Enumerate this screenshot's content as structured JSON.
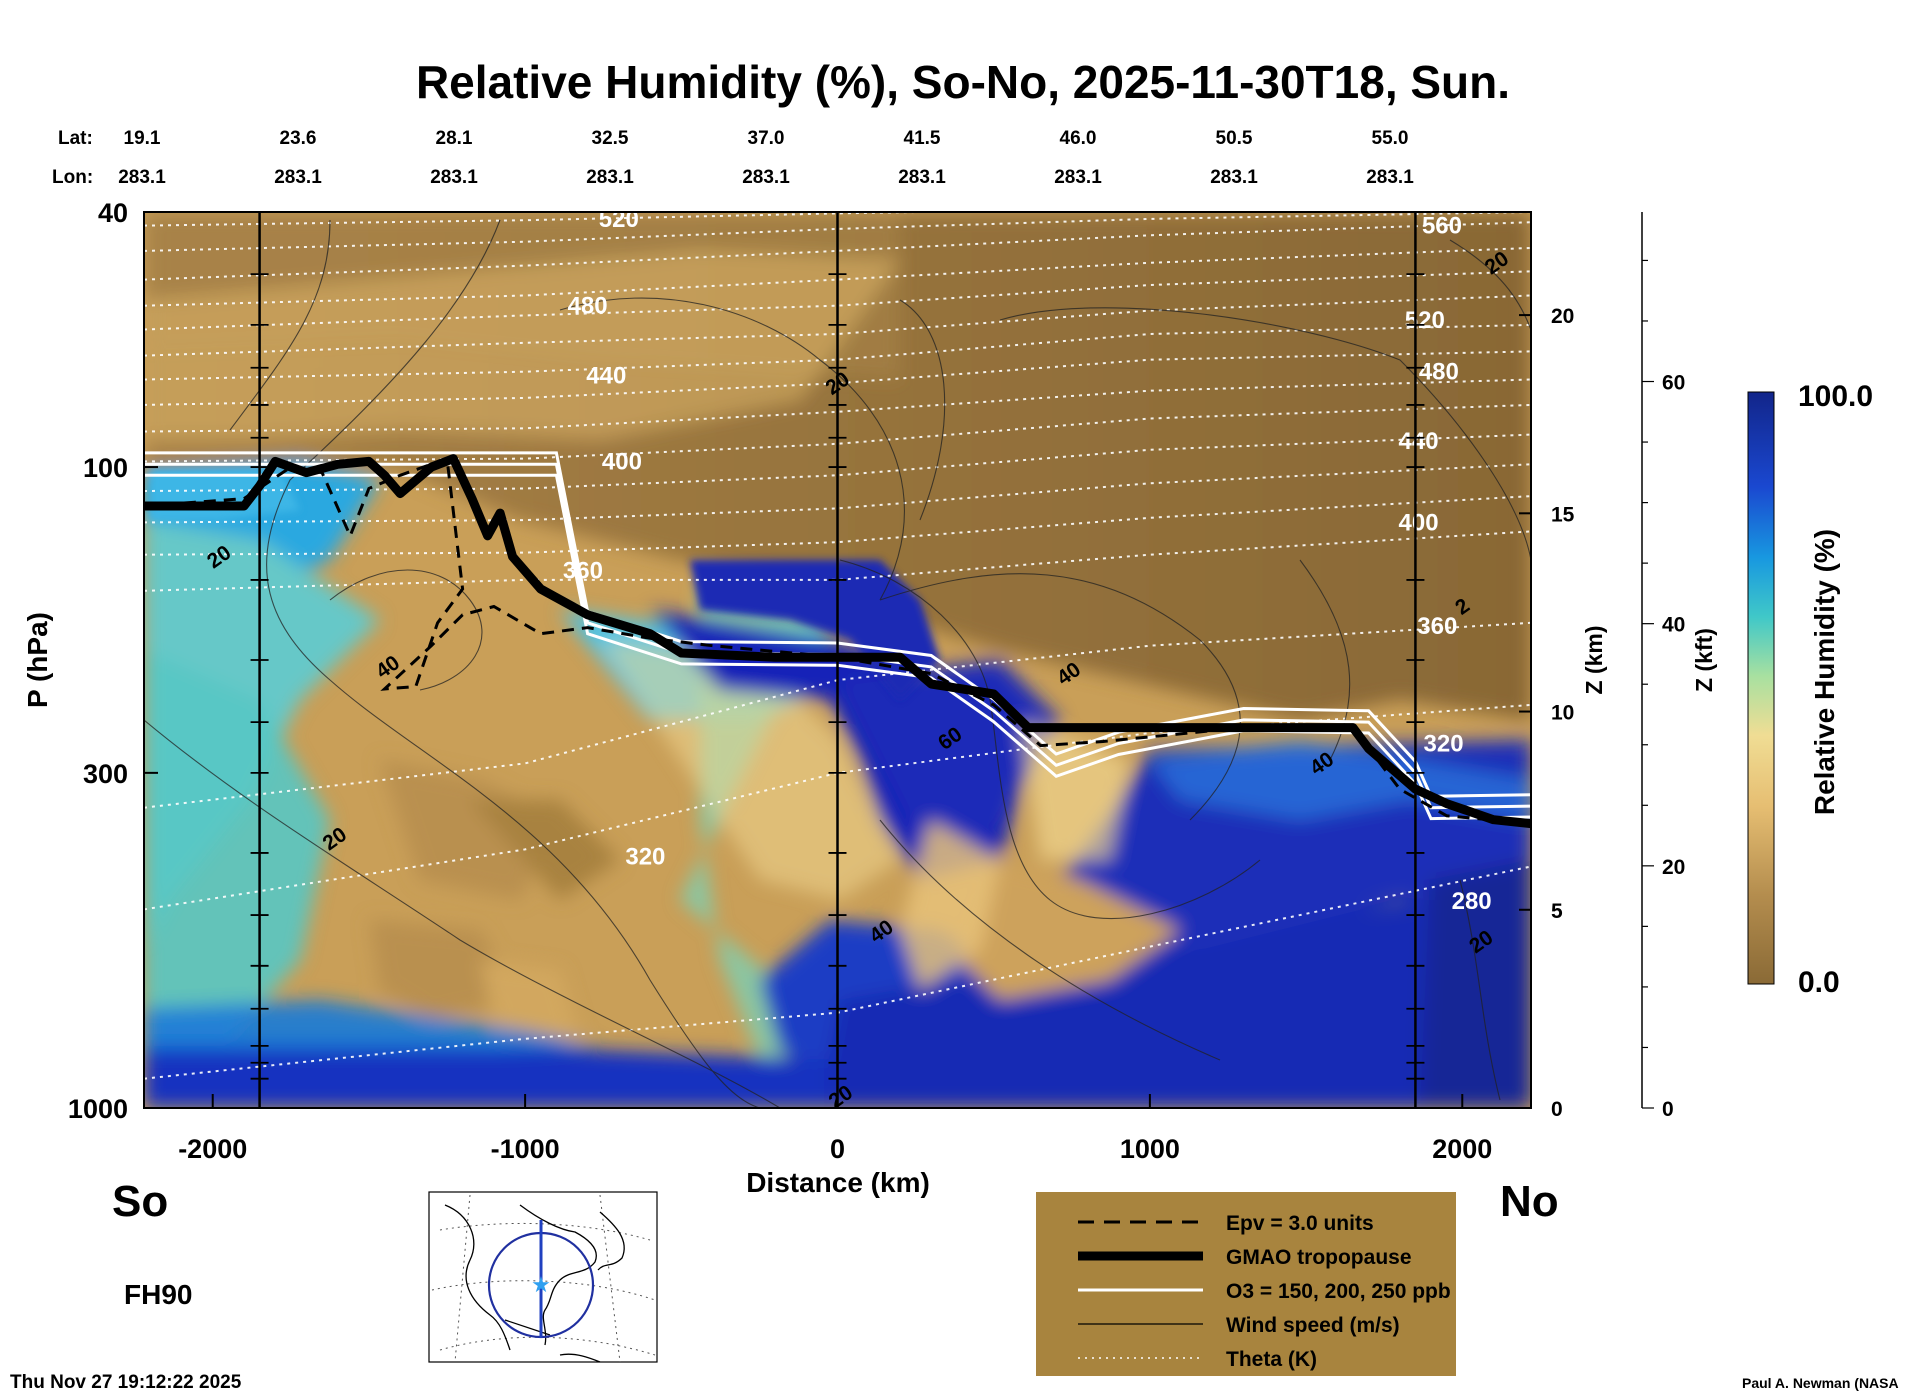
{
  "title": "Relative Humidity (%), So-No, 2025-11-30T18, Sun.",
  "header": {
    "lat_label": "Lat:",
    "lon_label": "Lon:",
    "lats": [
      "19.1",
      "23.6",
      "28.1",
      "32.5",
      "37.0",
      "41.5",
      "46.0",
      "50.5",
      "55.0"
    ],
    "lons": [
      "283.1",
      "283.1",
      "283.1",
      "283.1",
      "283.1",
      "283.1",
      "283.1",
      "283.1",
      "283.1"
    ]
  },
  "chart_data": {
    "type": "heatmap",
    "title": "Relative Humidity (%), So-No, 2025-11-30T18, Sun.",
    "xlabel": "Distance (km)",
    "ylabel": "P (hPa)",
    "ylabel_right": "Z (km)",
    "ylabel_right2": "Z (kft)",
    "x_range": [
      -2220,
      2220
    ],
    "y_range": [
      1000,
      40
    ],
    "y_scale": "log",
    "x_ticks": [
      "-2000",
      "-1000",
      "0",
      "1000",
      "2000"
    ],
    "x_tick_values": [
      -2000,
      -1000,
      0,
      1000,
      2000
    ],
    "y_ticks": [
      "40",
      "100",
      "300",
      "1000"
    ],
    "y_tick_values": [
      40,
      100,
      300,
      1000
    ],
    "z_km_ticks": [
      "0",
      "5",
      "10",
      "15",
      "20"
    ],
    "z_km_values": [
      0,
      5,
      10,
      15,
      20
    ],
    "z_kft_ticks": [
      "0",
      "20",
      "40",
      "60"
    ],
    "z_kft_values": [
      0,
      20,
      40,
      60
    ],
    "vertical_lines_km": [
      -1850,
      0,
      1850
    ],
    "colorbar": {
      "label": "Relative Humidity (%)",
      "min_label": "0.0",
      "max_label": "100.0",
      "min": 0,
      "max": 100
    },
    "theta_labels": [
      {
        "text": "520",
        "x": -700,
        "p": 41
      },
      {
        "text": "480",
        "x": -800,
        "p": 56
      },
      {
        "text": "440",
        "x": -740,
        "p": 72
      },
      {
        "text": "400",
        "x": -690,
        "p": 98
      },
      {
        "text": "360",
        "x": -815,
        "p": 145
      },
      {
        "text": "320",
        "x": -615,
        "p": 405
      },
      {
        "text": "560",
        "x": 1935,
        "p": 42
      },
      {
        "text": "520",
        "x": 1880,
        "p": 59
      },
      {
        "text": "480",
        "x": 1925,
        "p": 71
      },
      {
        "text": "440",
        "x": 1860,
        "p": 91
      },
      {
        "text": "400",
        "x": 1860,
        "p": 122
      },
      {
        "text": "360",
        "x": 1920,
        "p": 177
      },
      {
        "text": "320",
        "x": 1940,
        "p": 270
      },
      {
        "text": "280",
        "x": 2030,
        "p": 475
      }
    ],
    "theta_lines": [
      {
        "pts": [
          [
            -2220,
            42
          ],
          [
            -1000,
            41.2
          ],
          [
            0,
            40.2
          ],
          [
            1000,
            39.4
          ]
        ]
      },
      {
        "pts": [
          [
            -2220,
            46
          ],
          [
            -1000,
            44.5
          ],
          [
            0,
            42.5
          ],
          [
            1000,
            41
          ],
          [
            2220,
            40
          ]
        ]
      },
      {
        "pts": [
          [
            -2220,
            51
          ],
          [
            -1000,
            48.5
          ],
          [
            0,
            46
          ],
          [
            1000,
            43.5
          ],
          [
            2220,
            41.5
          ]
        ]
      },
      {
        "pts": [
          [
            -2220,
            56
          ],
          [
            -1000,
            54
          ],
          [
            0,
            51
          ],
          [
            1000,
            48
          ],
          [
            2220,
            45.5
          ]
        ]
      },
      {
        "pts": [
          [
            -2220,
            61
          ],
          [
            -1000,
            58
          ],
          [
            0,
            56
          ],
          [
            1000,
            52
          ],
          [
            2220,
            49.5
          ]
        ]
      },
      {
        "pts": [
          [
            -2220,
            67
          ],
          [
            -1000,
            64
          ],
          [
            0,
            62
          ],
          [
            1000,
            57
          ],
          [
            2220,
            54
          ]
        ]
      },
      {
        "pts": [
          [
            -2220,
            73
          ],
          [
            -1000,
            71
          ],
          [
            0,
            68
          ],
          [
            1000,
            62
          ],
          [
            2220,
            60
          ]
        ]
      },
      {
        "pts": [
          [
            -2220,
            80
          ],
          [
            -1000,
            78
          ],
          [
            0,
            74
          ],
          [
            1000,
            68
          ],
          [
            2220,
            66
          ]
        ]
      },
      {
        "pts": [
          [
            -2220,
            88
          ],
          [
            -1000,
            87
          ],
          [
            0,
            82
          ],
          [
            1000,
            76
          ],
          [
            2220,
            73
          ]
        ]
      },
      {
        "pts": [
          [
            -2220,
            98
          ],
          [
            -1000,
            97
          ],
          [
            0,
            92
          ],
          [
            1000,
            84
          ],
          [
            2220,
            80
          ]
        ]
      },
      {
        "pts": [
          [
            -2220,
            109
          ],
          [
            -1000,
            108
          ],
          [
            0,
            103
          ],
          [
            1000,
            94
          ],
          [
            2220,
            89
          ]
        ]
      },
      {
        "pts": [
          [
            -2220,
            122
          ],
          [
            -1000,
            121
          ],
          [
            0,
            116
          ],
          [
            1000,
            106
          ],
          [
            2220,
            99
          ]
        ]
      },
      {
        "pts": [
          [
            -2220,
            137
          ],
          [
            -1000,
            136
          ],
          [
            0,
            131
          ],
          [
            1000,
            120
          ],
          [
            2220,
            111
          ]
        ]
      },
      {
        "pts": [
          [
            -2220,
            156
          ],
          [
            -1000,
            150
          ],
          [
            0,
            150
          ],
          [
            1000,
            137
          ],
          [
            2220,
            126
          ]
        ]
      },
      {
        "pts": [
          [
            -2220,
            340
          ],
          [
            -1000,
            290
          ],
          [
            0,
            215
          ],
          [
            1000,
            190
          ],
          [
            2220,
            175
          ]
        ]
      },
      {
        "pts": [
          [
            -2220,
            490
          ],
          [
            -1000,
            395
          ],
          [
            0,
            300
          ],
          [
            1000,
            260
          ],
          [
            2220,
            235
          ]
        ]
      },
      {
        "pts": [
          [
            -2220,
            900
          ],
          [
            -1000,
            780
          ],
          [
            0,
            710
          ],
          [
            1000,
            560
          ],
          [
            2220,
            420
          ]
        ]
      }
    ],
    "wind_labels": [
      {
        "text": "20",
        "x": -1980,
        "p": 138
      },
      {
        "text": "40",
        "x": -1440,
        "p": 205
      },
      {
        "text": "20",
        "x": -1610,
        "p": 380
      },
      {
        "text": "20",
        "x": 0,
        "p": 74
      },
      {
        "text": "40",
        "x": 740,
        "p": 210
      },
      {
        "text": "60",
        "x": 360,
        "p": 265
      },
      {
        "text": "40",
        "x": 1550,
        "p": 290
      },
      {
        "text": "40",
        "x": 140,
        "p": 530
      },
      {
        "text": "20",
        "x": 2060,
        "p": 550
      },
      {
        "text": "20",
        "x": 10,
        "p": 960
      },
      {
        "text": "20",
        "x": 2110,
        "p": 48
      },
      {
        "text": "2",
        "x": 2000,
        "p": 165
      }
    ],
    "tropopause": [
      [
        -2220,
        115
      ],
      [
        -1900,
        115
      ],
      [
        -1850,
        107
      ],
      [
        -1800,
        98
      ],
      [
        -1700,
        102
      ],
      [
        -1600,
        99
      ],
      [
        -1500,
        98
      ],
      [
        -1450,
        103
      ],
      [
        -1400,
        110
      ],
      [
        -1300,
        100
      ],
      [
        -1230,
        97
      ],
      [
        -1170,
        112
      ],
      [
        -1120,
        128
      ],
      [
        -1080,
        118
      ],
      [
        -1040,
        138
      ],
      [
        -950,
        155
      ],
      [
        -800,
        170
      ],
      [
        -600,
        182
      ],
      [
        -500,
        195
      ],
      [
        -200,
        198
      ],
      [
        200,
        198
      ],
      [
        300,
        218
      ],
      [
        500,
        226
      ],
      [
        610,
        255
      ],
      [
        800,
        255
      ],
      [
        1650,
        255
      ],
      [
        1700,
        275
      ],
      [
        1850,
        318
      ],
      [
        1950,
        335
      ],
      [
        2100,
        355
      ],
      [
        2220,
        360
      ]
    ],
    "epv": [
      [
        -2220,
        115
      ],
      [
        -1900,
        112
      ],
      [
        -1750,
        100
      ],
      [
        -1650,
        102
      ],
      [
        -1560,
        128
      ],
      [
        -1500,
        108
      ],
      [
        -1400,
        103
      ],
      [
        -1250,
        97
      ],
      [
        -1200,
        155
      ],
      [
        -1280,
        175
      ],
      [
        -1350,
        220
      ],
      [
        -1450,
        222
      ],
      [
        -1300,
        190
      ],
      [
        -1200,
        170
      ],
      [
        -1100,
        165
      ],
      [
        -950,
        182
      ],
      [
        -800,
        178
      ],
      [
        -600,
        185
      ],
      [
        -400,
        190
      ],
      [
        0,
        198
      ],
      [
        300,
        210
      ],
      [
        500,
        235
      ],
      [
        650,
        272
      ],
      [
        850,
        268
      ],
      [
        1300,
        255
      ],
      [
        1650,
        255
      ],
      [
        1800,
        318
      ],
      [
        1950,
        350
      ],
      [
        2220,
        360
      ]
    ],
    "ozone": [
      [
        -2220,
        99
      ],
      [
        -900,
        99
      ],
      [
        -800,
        175
      ],
      [
        -500,
        195
      ],
      [
        0,
        196
      ],
      [
        300,
        205
      ],
      [
        500,
        240
      ],
      [
        700,
        292
      ],
      [
        900,
        270
      ],
      [
        1300,
        248
      ],
      [
        1700,
        250
      ],
      [
        1850,
        300
      ],
      [
        1900,
        340
      ],
      [
        2220,
        338
      ]
    ],
    "legend": [
      {
        "style": "dashed",
        "label": "Epv = 3.0 units"
      },
      {
        "style": "thick",
        "label": "GMAO tropopause"
      },
      {
        "style": "white",
        "label": "O3 = 150, 200, 250 ppb"
      },
      {
        "style": "thin",
        "label": "Wind speed (m/s)"
      },
      {
        "style": "dotted",
        "label": "Theta (K)"
      }
    ]
  },
  "side_labels": {
    "south": "So",
    "north": "No",
    "forecast_hour": "FH90"
  },
  "footer": {
    "timestamp": "Thu Nov 27 19:12:22 2025",
    "credit": "Paul A. Newman (NASA"
  },
  "colors": {
    "dry": "#8c6a38",
    "moist": "#1a1aa8",
    "legend_bg": "#a8843e",
    "axis": "#000000"
  }
}
